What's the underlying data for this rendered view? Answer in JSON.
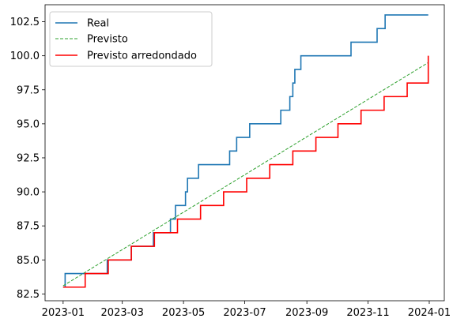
{
  "chart_data": {
    "type": "line",
    "xlim": [
      "2022-12-14",
      "2024-01-16"
    ],
    "ylim": [
      82.0,
      103.75
    ],
    "x_ticks": [
      "2023-01",
      "2023-03",
      "2023-05",
      "2023-07",
      "2023-09",
      "2023-11",
      "2024-01"
    ],
    "x_tick_dates": [
      "2023-01-01",
      "2023-03-01",
      "2023-05-01",
      "2023-07-01",
      "2023-09-01",
      "2023-11-01",
      "2024-01-01"
    ],
    "y_ticks": [
      82.5,
      85.0,
      87.5,
      90.0,
      92.5,
      95.0,
      97.5,
      100.0,
      102.5
    ],
    "y_tick_labels": [
      "82.5",
      "85.0",
      "87.5",
      "90.0",
      "92.5",
      "95.0",
      "97.5",
      "100.0",
      "102.5"
    ],
    "grid": false,
    "legend": "upper-left",
    "series": [
      {
        "name": "Real",
        "color": "#1f77b4",
        "style": "step",
        "points": [
          [
            "2023-01-01",
            83
          ],
          [
            "2023-01-03",
            84
          ],
          [
            "2023-02-14",
            85
          ],
          [
            "2023-03-10",
            86
          ],
          [
            "2023-04-01",
            87
          ],
          [
            "2023-04-18",
            88
          ],
          [
            "2023-04-23",
            89
          ],
          [
            "2023-05-03",
            90
          ],
          [
            "2023-05-05",
            91
          ],
          [
            "2023-05-16",
            92
          ],
          [
            "2023-06-16",
            93
          ],
          [
            "2023-06-23",
            94
          ],
          [
            "2023-07-06",
            95
          ],
          [
            "2023-08-06",
            96
          ],
          [
            "2023-08-15",
            97
          ],
          [
            "2023-08-18",
            98
          ],
          [
            "2023-08-20",
            99
          ],
          [
            "2023-08-26",
            100
          ],
          [
            "2023-10-15",
            101
          ],
          [
            "2023-11-10",
            102
          ],
          [
            "2023-11-18",
            103
          ],
          [
            "2023-12-31",
            103
          ]
        ]
      },
      {
        "name": "Previsto",
        "color": "#2ca02c",
        "style": "dashed",
        "points": [
          [
            "2023-01-01",
            83.1
          ],
          [
            "2023-12-31",
            99.5
          ]
        ]
      },
      {
        "name": "Previsto arredondado",
        "color": "#ff0000",
        "style": "step",
        "points": [
          [
            "2023-01-01",
            83
          ],
          [
            "2023-01-23",
            84
          ],
          [
            "2023-02-15",
            85
          ],
          [
            "2023-03-10",
            86
          ],
          [
            "2023-04-02",
            87
          ],
          [
            "2023-04-25",
            88
          ],
          [
            "2023-05-18",
            89
          ],
          [
            "2023-06-10",
            90
          ],
          [
            "2023-07-03",
            91
          ],
          [
            "2023-07-26",
            92
          ],
          [
            "2023-08-18",
            93
          ],
          [
            "2023-09-10",
            94
          ],
          [
            "2023-10-02",
            95
          ],
          [
            "2023-10-25",
            96
          ],
          [
            "2023-11-17",
            97
          ],
          [
            "2023-12-10",
            98
          ],
          [
            "2023-12-31",
            99
          ],
          [
            "2023-12-31",
            100
          ]
        ]
      }
    ]
  }
}
